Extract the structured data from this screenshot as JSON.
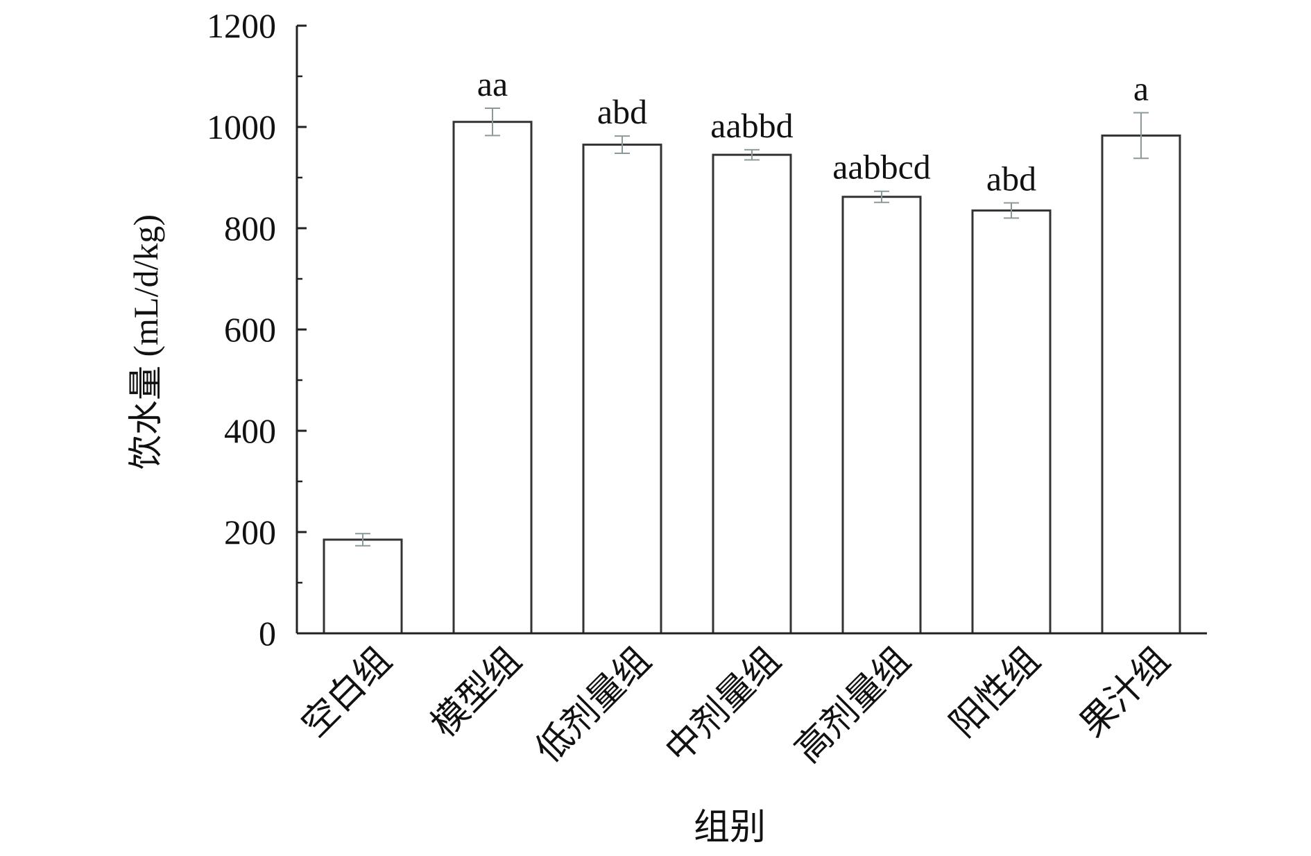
{
  "chart_data": {
    "type": "bar",
    "title": "",
    "xlabel": "组别",
    "ylabel": "饮水量 (mL/d/kg)",
    "ylim": [
      0,
      1200
    ],
    "yticks": [
      0,
      200,
      400,
      600,
      800,
      1000,
      1200
    ],
    "categories": [
      "空白组",
      "模型组",
      "低剂量组",
      "中剂量组",
      "高剂量组",
      "阳性组",
      "果汁组"
    ],
    "values": [
      185,
      1010,
      965,
      945,
      862,
      835,
      983
    ],
    "errors": [
      12,
      27,
      17,
      10,
      11,
      15,
      45
    ],
    "labels": [
      "",
      "aa",
      "abd",
      "aabbd",
      "aabbcd",
      "abd",
      "a"
    ],
    "grid": false,
    "colors": {
      "bar_fill": "#ffffff",
      "bar_stroke": "#333333",
      "error_bar": "#8a9a9a",
      "axis": "#222222"
    }
  }
}
